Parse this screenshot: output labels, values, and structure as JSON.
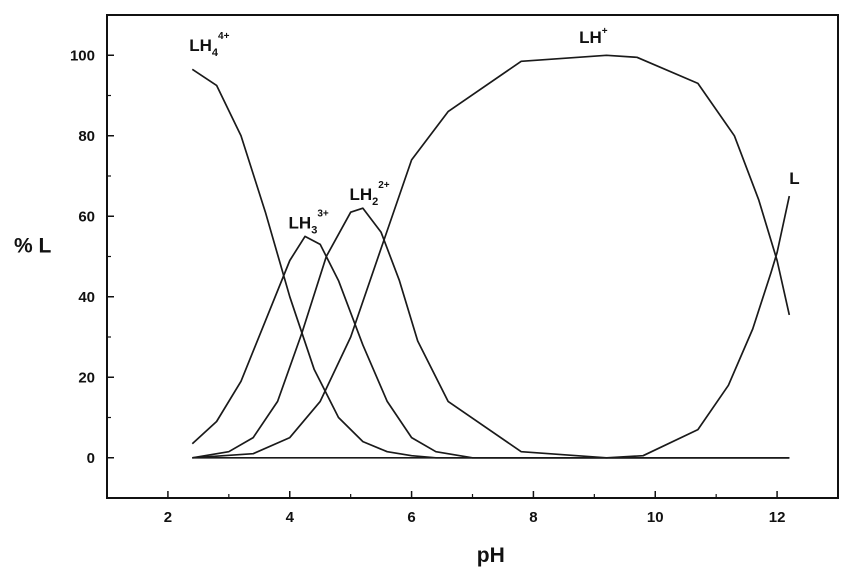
{
  "colors": {
    "line": "#1a1a1a",
    "axis": "#111111",
    "background": "#ffffff"
  },
  "chart_data": {
    "type": "line",
    "title": "",
    "xlabel": "pH",
    "ylabel": "% L",
    "xlim": [
      1.0,
      13.0
    ],
    "ylim": [
      -10,
      110
    ],
    "x_ticks": [
      2,
      4,
      6,
      8,
      10,
      12
    ],
    "y_ticks": [
      0,
      20,
      40,
      60,
      80,
      100
    ],
    "x_tick_labels": [
      "2",
      "4",
      "6",
      "8",
      "10",
      "12"
    ],
    "y_tick_labels": [
      "0",
      "20",
      "40",
      "60",
      "80",
      "100"
    ],
    "grid": false,
    "legend": "none",
    "series": [
      {
        "name": "LH4 4+",
        "label_main": "LH",
        "label_sub": "4",
        "label_sup": "4+",
        "label_pos": [
          2.35,
          101
        ],
        "x": [
          2.4,
          2.8,
          3.2,
          3.6,
          4.0,
          4.4,
          4.8,
          5.2,
          5.6,
          6.0,
          6.4,
          12.2
        ],
        "y": [
          96.5,
          92.5,
          80,
          61,
          40,
          22,
          10,
          4,
          1.5,
          0.5,
          0,
          0
        ]
      },
      {
        "name": "LH3 3+",
        "label_main": "LH",
        "label_sub": "3",
        "label_sup": "3+",
        "label_pos": [
          3.98,
          57
        ],
        "x": [
          2.4,
          2.8,
          3.2,
          3.6,
          4.0,
          4.25,
          4.5,
          4.8,
          5.2,
          5.6,
          6.0,
          6.4,
          7.0,
          12.2
        ],
        "y": [
          3.5,
          9,
          19,
          34,
          49,
          55,
          53,
          44,
          28,
          14,
          5,
          1.5,
          0,
          0
        ]
      },
      {
        "name": "LH2 2+",
        "label_main": "LH",
        "label_sub": "2",
        "label_sup": "2+",
        "label_pos": [
          4.98,
          64
        ],
        "x": [
          2.4,
          3.0,
          3.4,
          3.8,
          4.2,
          4.6,
          5.0,
          5.2,
          5.5,
          5.8,
          6.1,
          6.6,
          7.8,
          9.2,
          12.2
        ],
        "y": [
          0,
          1.5,
          5,
          14,
          31,
          50,
          61,
          62,
          56,
          44,
          29,
          14,
          1.5,
          0,
          0
        ]
      },
      {
        "name": "LH+",
        "label_main": "LH",
        "label_sub": "",
        "label_sup": "+",
        "label_pos": [
          8.75,
          103
        ],
        "x": [
          2.4,
          3.4,
          4.0,
          4.5,
          5.0,
          5.5,
          6.0,
          6.6,
          7.8,
          9.2,
          9.7,
          10.7,
          11.3,
          11.7,
          12.0,
          12.2
        ],
        "y": [
          0,
          1,
          5,
          14,
          30,
          52,
          74,
          86,
          98.5,
          100,
          99.5,
          93,
          80,
          64,
          49,
          35.5
        ]
      },
      {
        "name": "L",
        "label_main": "L",
        "label_sub": "",
        "label_sup": "",
        "label_pos": [
          12.2,
          68
        ],
        "x": [
          2.4,
          9.2,
          9.8,
          10.7,
          11.2,
          11.6,
          11.9,
          12.0,
          12.2
        ],
        "y": [
          0,
          0,
          0.5,
          7,
          18,
          32,
          46,
          51,
          65
        ]
      }
    ]
  }
}
